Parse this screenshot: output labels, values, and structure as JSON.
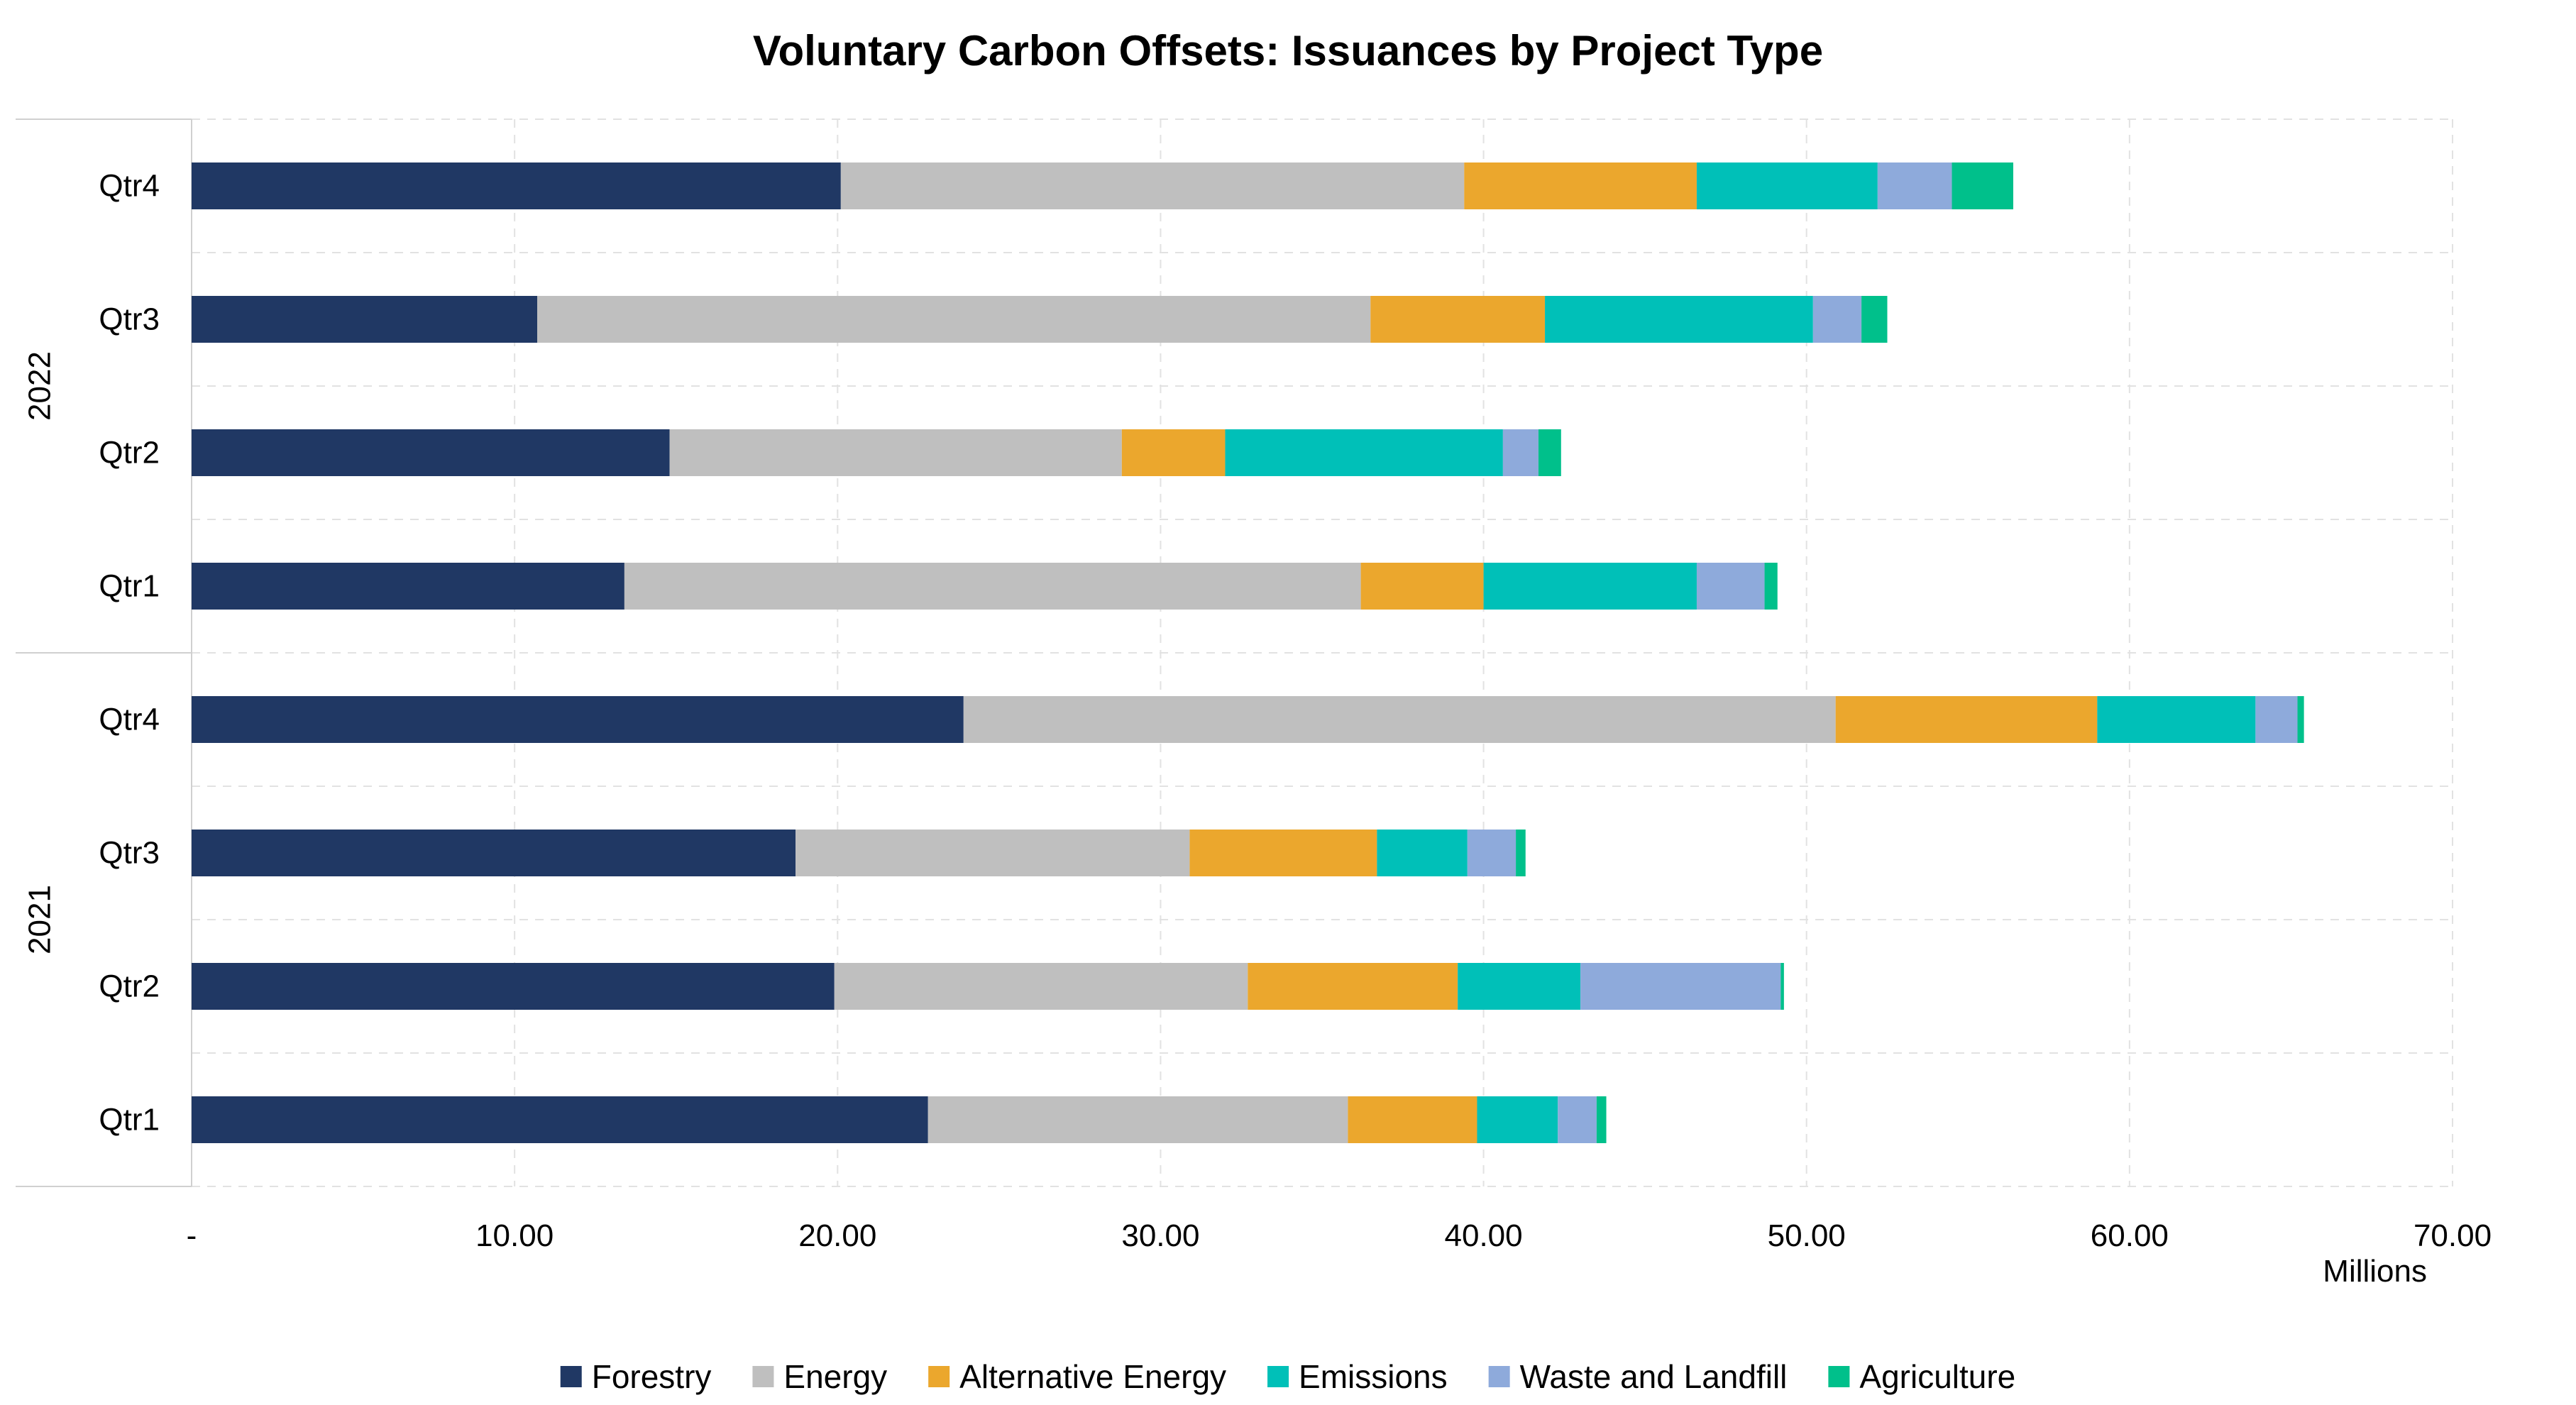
{
  "chart_data": {
    "type": "bar",
    "orientation": "horizontal",
    "stacked": true,
    "title": "Voluntary Carbon Offsets: Issuances by Project Type",
    "xlabel": "",
    "ylabel": "",
    "x_unit_label": "Millions",
    "xlim": [
      0,
      70
    ],
    "x_ticks": [
      0,
      10,
      20,
      30,
      40,
      50,
      60,
      70
    ],
    "x_tick_labels": [
      "-",
      "10.00",
      "20.00",
      "30.00",
      "40.00",
      "50.00",
      "60.00",
      "70.00"
    ],
    "grid": true,
    "legend_position": "bottom",
    "groups": [
      {
        "name": "2022",
        "categories": [
          "Qtr4",
          "Qtr3",
          "Qtr2",
          "Qtr1"
        ]
      },
      {
        "name": "2021",
        "categories": [
          "Qtr4",
          "Qtr3",
          "Qtr2",
          "Qtr1"
        ]
      }
    ],
    "rows": [
      {
        "group": "2022",
        "label": "Qtr4"
      },
      {
        "group": "2022",
        "label": "Qtr3"
      },
      {
        "group": "2022",
        "label": "Qtr2"
      },
      {
        "group": "2022",
        "label": "Qtr1"
      },
      {
        "group": "2021",
        "label": "Qtr4"
      },
      {
        "group": "2021",
        "label": "Qtr3"
      },
      {
        "group": "2021",
        "label": "Qtr2"
      },
      {
        "group": "2021",
        "label": "Qtr1"
      }
    ],
    "series": [
      {
        "name": "Forestry",
        "color": "#203864",
        "values": [
          20.1,
          10.7,
          14.8,
          13.4,
          23.9,
          18.7,
          19.9,
          22.8
        ]
      },
      {
        "name": "Energy",
        "color": "#bfbfbf",
        "values": [
          19.3,
          25.8,
          14.0,
          22.8,
          27.0,
          12.2,
          12.8,
          13.0
        ]
      },
      {
        "name": "Alternative Energy",
        "color": "#eba72d",
        "values": [
          7.2,
          5.4,
          3.2,
          3.8,
          8.1,
          5.8,
          6.5,
          4.0
        ]
      },
      {
        "name": "Emissions",
        "color": "#00c0b8",
        "values": [
          5.6,
          8.3,
          8.6,
          6.6,
          4.9,
          2.8,
          3.8,
          2.5
        ]
      },
      {
        "name": "Waste and Landfill",
        "color": "#8eaadb",
        "values": [
          2.3,
          1.5,
          1.1,
          2.1,
          1.3,
          1.5,
          6.2,
          1.2
        ]
      },
      {
        "name": "Agriculture",
        "color": "#00c08b",
        "values": [
          1.9,
          0.8,
          0.7,
          0.4,
          0.2,
          0.3,
          0.1,
          0.3
        ]
      }
    ]
  }
}
